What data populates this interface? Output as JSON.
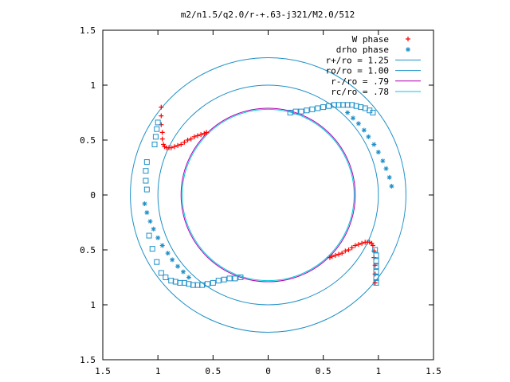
{
  "chart_data": {
    "type": "scatter",
    "title": "m2/n1.5/q2.0/r-+.63-j321/M2.0/512",
    "xlabel": "",
    "ylabel": "",
    "xlim": [
      -1.5,
      1.5
    ],
    "ylim": [
      -1.5,
      1.5
    ],
    "grid": false,
    "legend_position": "top-right",
    "x_ticks": [
      -1.5,
      -1,
      -0.5,
      0,
      0.5,
      1,
      1.5
    ],
    "x_tick_labels": [
      "1.5",
      "1",
      "0.5",
      "0",
      "0.5",
      "1",
      "1.5"
    ],
    "y_ticks": [
      1.5,
      1,
      0.5,
      0,
      -0.5,
      -1,
      -1.5
    ],
    "y_tick_labels": [
      "1.5",
      "1",
      "0.5",
      "0",
      "0.5",
      "1",
      "1.5"
    ],
    "legend": [
      {
        "label": "W phase",
        "style": "plus",
        "color": "#ff0000"
      },
      {
        "label": "drho phase",
        "style": "star",
        "color": "#1e90c8"
      },
      {
        "label": "r+/ro = 1.25",
        "style": "line",
        "color": "#1e90c8"
      },
      {
        "label": "ro/ro = 1.00",
        "style": "line",
        "color": "#1e90c8"
      },
      {
        "label": "r-/ro =  .79",
        "style": "line",
        "color": "#b400b4"
      },
      {
        "label": "rc/ro =  .78",
        "style": "line",
        "color": "#00c8dc"
      }
    ],
    "circles": [
      {
        "radius": 1.25,
        "color": "#1e90c8"
      },
      {
        "radius": 1.0,
        "color": "#1e90c8"
      },
      {
        "radius": 0.79,
        "color": "#b400b4"
      },
      {
        "radius": 0.78,
        "color": "#00c8dc"
      }
    ],
    "series": [
      {
        "name": "W phase",
        "marker": "plus",
        "color": "#ff0000",
        "x": [
          -0.97,
          -0.97,
          -0.97,
          -0.96,
          -0.96,
          -0.95,
          -0.94,
          -0.92,
          -0.9,
          -0.88,
          -0.85,
          -0.82,
          -0.79,
          -0.76,
          -0.73,
          -0.7,
          -0.67,
          -0.64,
          -0.61,
          -0.58,
          -0.56,
          0.97,
          0.97,
          0.97,
          0.96,
          0.96,
          0.95,
          0.94,
          0.92,
          0.9,
          0.88,
          0.85,
          0.82,
          0.79,
          0.76,
          0.73,
          0.7,
          0.67,
          0.64,
          0.61,
          0.58,
          0.56
        ],
        "y": [
          0.8,
          0.72,
          0.64,
          0.57,
          0.51,
          0.46,
          0.44,
          0.43,
          0.43,
          0.43,
          0.44,
          0.45,
          0.46,
          0.48,
          0.5,
          0.51,
          0.53,
          0.54,
          0.55,
          0.56,
          0.57,
          -0.8,
          -0.72,
          -0.64,
          -0.57,
          -0.51,
          -0.46,
          -0.44,
          -0.43,
          -0.43,
          -0.43,
          -0.44,
          -0.45,
          -0.46,
          -0.48,
          -0.5,
          -0.51,
          -0.53,
          -0.54,
          -0.55,
          -0.56,
          -0.57
        ]
      },
      {
        "name": "drho phase",
        "marker": "star",
        "color": "#1e90c8",
        "x": [
          0.72,
          0.77,
          0.82,
          0.87,
          0.91,
          0.96,
          1.0,
          1.04,
          1.07,
          1.1,
          1.12,
          -0.72,
          -0.77,
          -0.82,
          -0.87,
          -0.91,
          -0.96,
          -1.0,
          -1.04,
          -1.07,
          -1.1,
          -1.12
        ],
        "y": [
          0.75,
          0.7,
          0.65,
          0.59,
          0.53,
          0.46,
          0.39,
          0.31,
          0.24,
          0.16,
          0.08,
          -0.75,
          -0.7,
          -0.65,
          -0.59,
          -0.53,
          -0.46,
          -0.39,
          -0.31,
          -0.24,
          -0.16,
          -0.08
        ]
      },
      {
        "name": "",
        "marker": "square",
        "color": "#1e90c8",
        "x": [
          -1.1,
          -1.11,
          -1.11,
          -1.1,
          -1.08,
          -1.05,
          -1.01,
          -0.97,
          -0.93,
          -0.88,
          -0.84,
          -0.8,
          -0.76,
          -0.72,
          -0.68,
          -0.64,
          -0.6,
          -0.55,
          -0.5,
          -0.45,
          -0.4,
          -0.35,
          -0.3,
          -0.25,
          -1.03,
          -1.02,
          -1.01,
          -1.0,
          0.2,
          0.25,
          0.3,
          0.35,
          0.4,
          0.45,
          0.5,
          0.55,
          0.6,
          0.64,
          0.68,
          0.72,
          0.76,
          0.8,
          0.84,
          0.88,
          0.92,
          0.95,
          0.97,
          0.98,
          0.98,
          0.98,
          0.98,
          0.98,
          0.98
        ],
        "y": [
          0.3,
          0.22,
          0.13,
          0.05,
          -0.37,
          -0.49,
          -0.61,
          -0.71,
          -0.75,
          -0.78,
          -0.79,
          -0.8,
          -0.8,
          -0.81,
          -0.82,
          -0.82,
          -0.82,
          -0.81,
          -0.8,
          -0.78,
          -0.77,
          -0.76,
          -0.76,
          -0.75,
          0.46,
          0.53,
          0.6,
          0.66,
          0.75,
          0.76,
          0.76,
          0.77,
          0.78,
          0.79,
          0.8,
          0.81,
          0.82,
          0.82,
          0.82,
          0.82,
          0.82,
          0.81,
          0.8,
          0.79,
          0.77,
          0.75,
          -0.5,
          -0.55,
          -0.6,
          -0.65,
          -0.7,
          -0.75,
          -0.8
        ]
      }
    ]
  }
}
